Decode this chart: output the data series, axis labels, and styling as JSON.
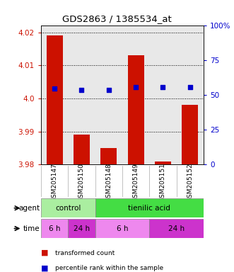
{
  "title": "GDS2863 / 1385534_at",
  "samples": [
    "GSM205147",
    "GSM205150",
    "GSM205148",
    "GSM205149",
    "GSM205151",
    "GSM205152"
  ],
  "bar_values": [
    4.019,
    3.989,
    3.985,
    4.013,
    3.981,
    3.998
  ],
  "bar_baseline": 3.98,
  "percentile_values": [
    55,
    54,
    54,
    56,
    56,
    56
  ],
  "bar_color": "#cc1100",
  "dot_color": "#0000cc",
  "left_ylim": [
    3.98,
    4.022
  ],
  "left_yticks": [
    3.98,
    3.99,
    4.0,
    4.01,
    4.02
  ],
  "right_ylim": [
    0,
    100
  ],
  "right_yticks": [
    0,
    25,
    50,
    75,
    100
  ],
  "right_yticklabels": [
    "0",
    "25",
    "50",
    "75",
    "100%"
  ],
  "agent_labels": [
    {
      "label": "control",
      "start": 0,
      "end": 2,
      "color": "#aaeea0"
    },
    {
      "label": "tienilic acid",
      "start": 2,
      "end": 6,
      "color": "#44dd44"
    }
  ],
  "time_labels": [
    {
      "label": "6 h",
      "start": 0,
      "end": 1,
      "color": "#ee88ee"
    },
    {
      "label": "24 h",
      "start": 1,
      "end": 2,
      "color": "#cc33cc"
    },
    {
      "label": "6 h",
      "start": 2,
      "end": 4,
      "color": "#ee88ee"
    },
    {
      "label": "24 h",
      "start": 4,
      "end": 6,
      "color": "#cc33cc"
    }
  ],
  "legend_items": [
    {
      "color": "#cc1100",
      "label": "transformed count"
    },
    {
      "color": "#0000cc",
      "label": "percentile rank within the sample"
    }
  ],
  "left_ylabel_color": "#cc1100",
  "right_ylabel_color": "#0000cc",
  "bg_color": "#ffffff",
  "plot_bg_color": "#e8e8e8",
  "grid_color": "#000000",
  "bar_width": 0.6,
  "dot_size": 22
}
